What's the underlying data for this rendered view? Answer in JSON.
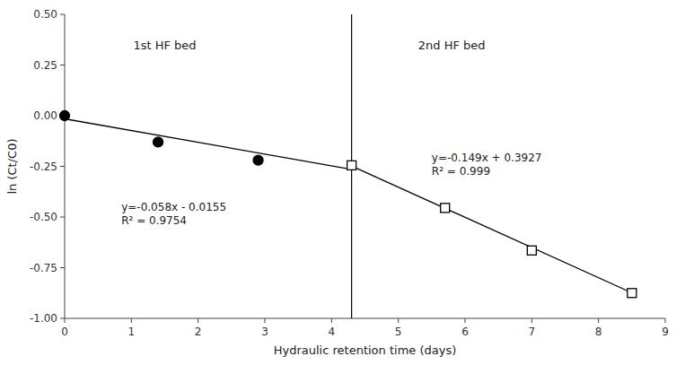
{
  "chart_data": {
    "type": "scatter",
    "title": "",
    "xlabel": "Hydraulic retention time (days)",
    "ylabel": "ln (Ct/C0)",
    "xlim": [
      0,
      9
    ],
    "ylim": [
      -1.0,
      0.5
    ],
    "xticks": [
      0,
      1,
      2,
      3,
      4,
      5,
      6,
      7,
      8,
      9
    ],
    "yticks": [
      {
        "value": -1.0,
        "label": "-1.00"
      },
      -0.75,
      {
        "value": -0.5,
        "label": "-0.50"
      },
      -0.25,
      {
        "value": 0.0,
        "label": "0.00"
      },
      0.25,
      {
        "value": 0.5,
        "label": "0.50"
      }
    ],
    "grid": false,
    "series": [
      {
        "type": "scatter",
        "marker": "circle",
        "color": "#000000",
        "x": [
          0,
          1.4,
          2.9
        ],
        "values": [
          0.0,
          -0.13,
          -0.22
        ]
      },
      {
        "type": "scatter",
        "marker": "open-square",
        "color": "#000000",
        "x": [
          4.3,
          5.7,
          7.0,
          8.5
        ],
        "values": [
          -0.245,
          -0.455,
          -0.665,
          -0.875
        ]
      },
      {
        "type": "line",
        "line_style": "solid",
        "color": "#000000",
        "x": [
          0,
          4.3
        ],
        "values": [
          -0.0155,
          -0.2649
        ]
      },
      {
        "type": "line",
        "line_style": "solid",
        "color": "#000000",
        "x": [
          4.3,
          8.5
        ],
        "values": [
          -0.248,
          -0.8738
        ]
      }
    ],
    "vline_x": 4.3,
    "vline_color": "#000000",
    "annotations": [
      {
        "lines": [
          "y=-0.058x - 0.0155",
          "R² = 0.9754"
        ],
        "x": 0.85,
        "y": -0.42,
        "align": "left"
      },
      {
        "lines": [
          "y=-0.149x + 0.3927",
          "R² = 0.999"
        ],
        "x": 5.5,
        "y": -0.18,
        "align": "left"
      },
      {
        "lines": [
          "1st HF bed"
        ],
        "x": 1.5,
        "y": 0.38,
        "align": "center"
      },
      {
        "lines": [
          "2nd HF bed"
        ],
        "x": 5.8,
        "y": 0.38,
        "align": "center"
      }
    ]
  }
}
